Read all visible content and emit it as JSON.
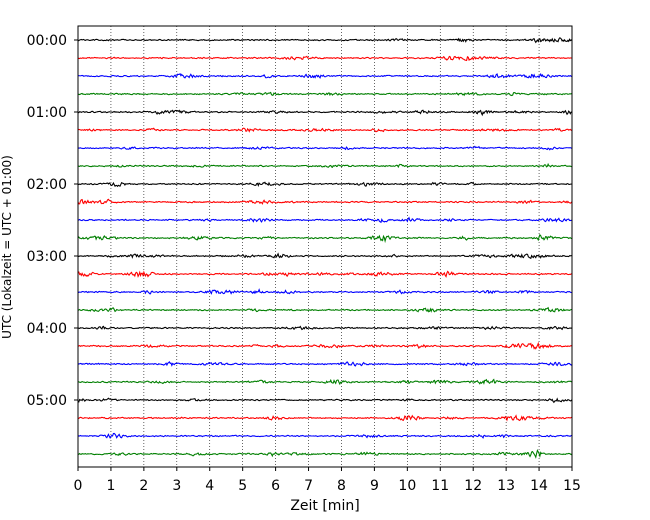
{
  "chart_data": {
    "type": "line",
    "chart_kind": "helicorder",
    "title": "",
    "xlabel": "Zeit  [min]",
    "ylabel": "UTC (Lokalzeit = UTC + 01:00)",
    "xlim": [
      0,
      15
    ],
    "x_ticks": [
      "0",
      "1",
      "2",
      "3",
      "4",
      "5",
      "6",
      "7",
      "8",
      "9",
      "10",
      "11",
      "12",
      "13",
      "14",
      "15"
    ],
    "y_tick_labels": [
      "00:00",
      "01:00",
      "02:00",
      "03:00",
      "04:00",
      "05:00"
    ],
    "trace_minutes": 15,
    "trace_count": 24,
    "trace_start_times": [
      "00:00",
      "00:15",
      "00:30",
      "00:45",
      "01:00",
      "01:15",
      "01:30",
      "01:45",
      "02:00",
      "02:15",
      "02:30",
      "02:45",
      "03:00",
      "03:15",
      "03:30",
      "03:45",
      "04:00",
      "04:15",
      "04:30",
      "04:45",
      "05:00",
      "05:15",
      "05:30",
      "05:45"
    ],
    "trace_colors": [
      "#000000",
      "#ff0000",
      "#0000ff",
      "#007f00"
    ],
    "vertical_grid": true,
    "grid_style": "dotted",
    "legend": "none"
  }
}
